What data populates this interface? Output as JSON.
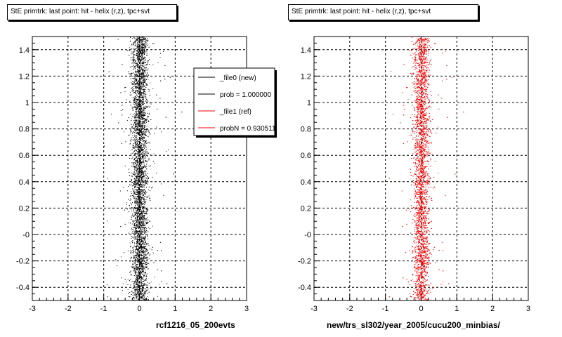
{
  "footer_text": "",
  "chart_data": [
    {
      "type": "scatter",
      "title": "StE primtrk: last point: hit - helix (r,z), tpc+svt",
      "xlabel": "rcf1216_05_200evts",
      "ylabel": "",
      "xlim": [
        -3,
        3
      ],
      "ylim": [
        -0.5,
        1.5
      ],
      "x_ticks": [
        "-3",
        "-2",
        "-1",
        "0",
        "1",
        "2",
        "3"
      ],
      "y_ticks": [
        "-0.4",
        "-0.2",
        "-0",
        "0.2",
        "0.4",
        "0.6",
        "0.8",
        "1",
        "1.2",
        "1.4"
      ],
      "grid": true,
      "point_color": "#000000",
      "distribution": {
        "x_center": 0.0,
        "x_core_width": 0.22,
        "y_range": [
          -0.5,
          1.5
        ]
      },
      "legend": {
        "placement": "top-right",
        "entries": [
          {
            "label": "_file0 (new)",
            "color": "#000000"
          },
          {
            "label": "prob = 1.000000",
            "color": "#000000"
          },
          {
            "label": "_file1 (ref)",
            "color": "#ff0000"
          },
          {
            "label": "probN = 0.930511",
            "color": "#ff0000"
          }
        ]
      }
    },
    {
      "type": "scatter",
      "title": "StE primtrk: last point: hit - helix (r,z), tpc+svt",
      "xlabel": "new/trs_sl302/year_2005/cucu200_minbias/",
      "ylabel": "",
      "xlim": [
        -3,
        3
      ],
      "ylim": [
        -0.5,
        1.5
      ],
      "x_ticks": [
        "-3",
        "-2",
        "-1",
        "0",
        "1",
        "2",
        "3"
      ],
      "y_ticks": [
        "-0.4",
        "-0.2",
        "-0",
        "0.2",
        "0.4",
        "0.6",
        "0.8",
        "1",
        "1.2",
        "1.4"
      ],
      "grid": true,
      "point_color": "#ff0000",
      "distribution": {
        "x_center": 0.0,
        "x_core_width": 0.22,
        "y_range": [
          -0.5,
          1.5
        ]
      }
    }
  ]
}
